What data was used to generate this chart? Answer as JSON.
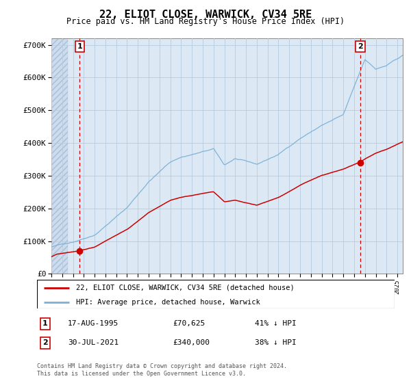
{
  "title": "22, ELIOT CLOSE, WARWICK, CV34 5RE",
  "subtitle": "Price paid vs. HM Land Registry's House Price Index (HPI)",
  "ylim": [
    0,
    720000
  ],
  "yticks": [
    0,
    100000,
    200000,
    300000,
    400000,
    500000,
    600000,
    700000
  ],
  "ytick_labels": [
    "£0",
    "£100K",
    "£200K",
    "£300K",
    "£400K",
    "£500K",
    "£600K",
    "£700K"
  ],
  "hpi_color": "#7ab0d8",
  "price_color": "#cc0000",
  "bg_light_blue": "#dce9f5",
  "bg_hatch_color": "#c8d8e8",
  "grid_color": "#b8cce0",
  "sale1_date": 1995.625,
  "sale1_price": 70625,
  "sale2_date": 2021.58,
  "sale2_price": 340000,
  "legend_line1": "22, ELIOT CLOSE, WARWICK, CV34 5RE (detached house)",
  "legend_line2": "HPI: Average price, detached house, Warwick",
  "footer1": "Contains HM Land Registry data © Crown copyright and database right 2024.",
  "footer2": "This data is licensed under the Open Government Licence v3.0.",
  "note1_label": "1",
  "note1_date": "17-AUG-1995",
  "note1_price": "£70,625",
  "note1_hpi": "41% ↓ HPI",
  "note2_label": "2",
  "note2_date": "30-JUL-2021",
  "note2_price": "£340,000",
  "note2_hpi": "38% ↓ HPI",
  "xmin": 1993.0,
  "xmax": 2025.5
}
